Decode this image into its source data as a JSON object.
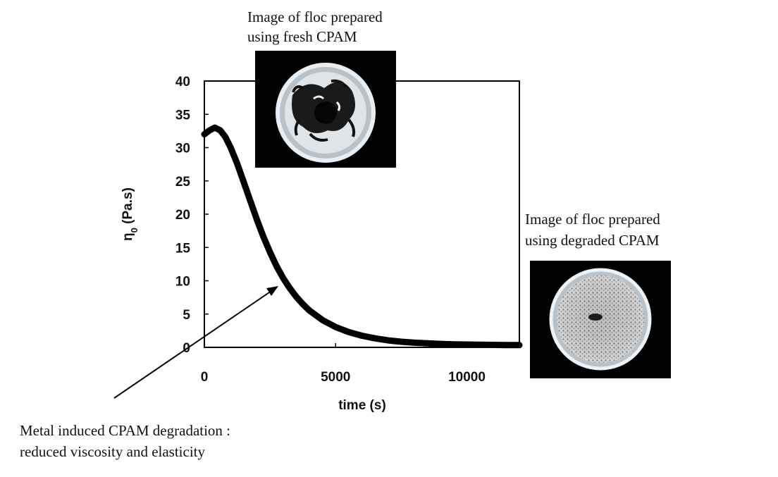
{
  "chart_data": {
    "type": "line",
    "title": "",
    "xlabel": "time (s)",
    "ylabel": "η0 (Pa.s)",
    "ylabel_main": "η",
    "ylabel_sub": "0",
    "ylabel_unit": " (Pa.s)",
    "xlim": [
      0,
      12000
    ],
    "ylim": [
      0,
      40
    ],
    "xticks": [
      0,
      5000,
      10000
    ],
    "yticks": [
      0,
      5,
      10,
      15,
      20,
      25,
      30,
      35,
      40
    ],
    "grid": false,
    "legend": "none",
    "series_color": "#000000",
    "series": [
      {
        "x": [
          0,
          200,
          400,
          600,
          800,
          1000,
          1250,
          1500,
          1750,
          2000,
          2250,
          2500,
          2750,
          3000,
          3250,
          3500,
          3750,
          4000,
          4500,
          5000,
          5500,
          6000,
          6500,
          7000,
          7500,
          8000,
          8500,
          9000,
          9500,
          10000,
          10500,
          11000,
          11500,
          12000
        ],
        "y": [
          32.0,
          32.6,
          33.0,
          32.6,
          31.6,
          30.0,
          27.6,
          24.8,
          22.0,
          19.2,
          16.6,
          14.3,
          12.2,
          10.4,
          8.9,
          7.6,
          6.5,
          5.55,
          4.1,
          3.05,
          2.3,
          1.75,
          1.35,
          1.05,
          0.85,
          0.7,
          0.6,
          0.52,
          0.46,
          0.42,
          0.39,
          0.37,
          0.35,
          0.34
        ]
      }
    ],
    "annotations": [
      {
        "id": "fresh",
        "lines": [
          "Image of floc prepared",
          "using fresh CPAM"
        ]
      },
      {
        "id": "degraded",
        "lines": [
          "Image of floc prepared",
          "using degraded CPAM"
        ]
      },
      {
        "id": "degradation",
        "lines": [
          "Metal induced CPAM degradation :",
          "reduced viscosity and elasticity"
        ]
      }
    ]
  }
}
